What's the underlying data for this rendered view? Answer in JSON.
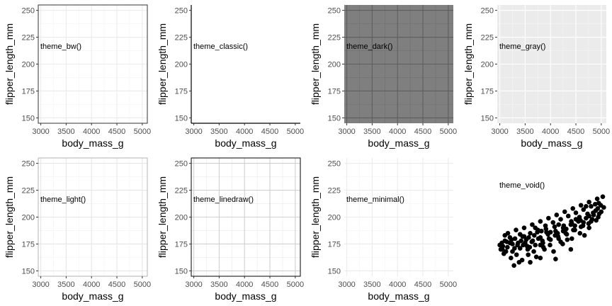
{
  "chart_data": [
    {
      "type": "scatter",
      "panel_label": "theme_bw()",
      "theme": "bw",
      "xlabel": "body_mass_g",
      "ylabel": "flipper_length_mm",
      "xlim": [
        2950,
        5100
      ],
      "ylim": [
        145,
        255
      ],
      "xticks": [
        3000,
        3500,
        4000,
        4500,
        5000
      ],
      "yticks": [
        150,
        175,
        200,
        225,
        250
      ],
      "points": []
    },
    {
      "type": "scatter",
      "panel_label": "theme_classic()",
      "theme": "classic",
      "xlabel": "body_mass_g",
      "ylabel": "flipper_length_mm",
      "xlim": [
        2950,
        5100
      ],
      "ylim": [
        145,
        255
      ],
      "xticks": [
        3000,
        3500,
        4000,
        4500,
        5000
      ],
      "yticks": [
        150,
        175,
        200,
        225,
        250
      ],
      "points": []
    },
    {
      "type": "scatter",
      "panel_label": "theme_dark()",
      "theme": "dark",
      "xlabel": "body_mass_g",
      "ylabel": "flipper_length_mm",
      "xlim": [
        2950,
        5100
      ],
      "ylim": [
        145,
        255
      ],
      "xticks": [
        3000,
        3500,
        4000,
        4500,
        5000
      ],
      "yticks": [
        150,
        175,
        200,
        225,
        250
      ],
      "points": []
    },
    {
      "type": "scatter",
      "panel_label": "theme_gray()",
      "theme": "gray",
      "xlabel": "body_mass_g",
      "ylabel": "flipper_length_mm",
      "xlim": [
        2950,
        5100
      ],
      "ylim": [
        145,
        255
      ],
      "xticks": [
        3000,
        3500,
        4000,
        4500,
        5000
      ],
      "yticks": [
        150,
        175,
        200,
        225,
        250
      ],
      "points": []
    },
    {
      "type": "scatter",
      "panel_label": "theme_light()",
      "theme": "light",
      "xlabel": "body_mass_g",
      "ylabel": "flipper_length_mm",
      "xlim": [
        2950,
        5100
      ],
      "ylim": [
        145,
        255
      ],
      "xticks": [
        3000,
        3500,
        4000,
        4500,
        5000
      ],
      "yticks": [
        150,
        175,
        200,
        225,
        250
      ],
      "points": []
    },
    {
      "type": "scatter",
      "panel_label": "theme_linedraw()",
      "theme": "linedraw",
      "xlabel": "body_mass_g",
      "ylabel": "flipper_length_mm",
      "xlim": [
        2950,
        5100
      ],
      "ylim": [
        145,
        255
      ],
      "xticks": [
        3000,
        3500,
        4000,
        4500,
        5000
      ],
      "yticks": [
        150,
        175,
        200,
        225,
        250
      ],
      "points": []
    },
    {
      "type": "scatter",
      "panel_label": "theme_minimal()",
      "theme": "minimal",
      "xlabel": "body_mass_g",
      "ylabel": "flipper_length_mm",
      "xlim": [
        2950,
        5100
      ],
      "ylim": [
        145,
        255
      ],
      "xticks": [
        3000,
        3500,
        4000,
        4500,
        5000
      ],
      "yticks": [
        150,
        175,
        200,
        225,
        250
      ],
      "points": []
    },
    {
      "type": "scatter",
      "panel_label": "theme_void()",
      "theme": "void",
      "xlabel": "",
      "ylabel": "",
      "xlim": [
        2950,
        5100
      ],
      "ylim": [
        145,
        255
      ],
      "xticks": [],
      "yticks": [],
      "points": [
        [
          3000,
          174
        ],
        [
          3050,
          170
        ],
        [
          3100,
          178
        ],
        [
          3150,
          172
        ],
        [
          3200,
          176
        ],
        [
          3250,
          168
        ],
        [
          3300,
          180
        ],
        [
          3350,
          174
        ],
        [
          3400,
          171
        ],
        [
          3450,
          182
        ],
        [
          3500,
          176
        ],
        [
          3550,
          170
        ],
        [
          3600,
          185
        ],
        [
          3650,
          178
        ],
        [
          3700,
          174
        ],
        [
          3750,
          188
        ],
        [
          3800,
          181
        ],
        [
          3850,
          176
        ],
        [
          3900,
          192
        ],
        [
          3950,
          184
        ],
        [
          4000,
          179
        ],
        [
          4050,
          195
        ],
        [
          4100,
          187
        ],
        [
          4150,
          182
        ],
        [
          4200,
          198
        ],
        [
          4250,
          190
        ],
        [
          4300,
          185
        ],
        [
          4350,
          201
        ],
        [
          4400,
          193
        ],
        [
          4450,
          188
        ],
        [
          4500,
          204
        ],
        [
          4550,
          196
        ],
        [
          4600,
          191
        ],
        [
          4650,
          207
        ],
        [
          4700,
          199
        ],
        [
          4750,
          194
        ],
        [
          4800,
          210
        ],
        [
          4850,
          202
        ],
        [
          4900,
          197
        ],
        [
          4950,
          213
        ],
        [
          5000,
          205
        ],
        [
          5050,
          209
        ],
        [
          3080,
          166
        ],
        [
          3220,
          162
        ],
        [
          3380,
          158
        ],
        [
          3560,
          165
        ],
        [
          3720,
          163
        ],
        [
          3880,
          170
        ],
        [
          4060,
          168
        ],
        [
          4240,
          175
        ],
        [
          4420,
          180
        ],
        [
          4580,
          185
        ],
        [
          4760,
          190
        ],
        [
          4940,
          200
        ],
        [
          3160,
          185
        ],
        [
          3320,
          188
        ],
        [
          3480,
          190
        ],
        [
          3640,
          193
        ],
        [
          3800,
          196
        ],
        [
          3960,
          199
        ],
        [
          4120,
          202
        ],
        [
          4280,
          205
        ],
        [
          4440,
          208
        ],
        [
          4600,
          211
        ],
        [
          4760,
          214
        ],
        [
          4920,
          217
        ],
        [
          5030,
          219
        ],
        [
          3020,
          170
        ],
        [
          3100,
          183
        ],
        [
          3250,
          175
        ],
        [
          3420,
          178
        ],
        [
          3590,
          172
        ],
        [
          3760,
          180
        ],
        [
          3920,
          186
        ],
        [
          4090,
          183
        ],
        [
          4260,
          192
        ],
        [
          4410,
          196
        ],
        [
          4570,
          200
        ],
        [
          4730,
          203
        ],
        [
          4890,
          206
        ],
        [
          3330,
          165
        ],
        [
          3670,
          168
        ],
        [
          3990,
          174
        ],
        [
          4330,
          179
        ],
        [
          4670,
          183
        ],
        [
          3140,
          177
        ],
        [
          3480,
          182
        ],
        [
          3820,
          187
        ],
        [
          4160,
          193
        ],
        [
          4500,
          198
        ],
        [
          4840,
          204
        ],
        [
          3060,
          173
        ],
        [
          3230,
          179
        ],
        [
          3400,
          184
        ],
        [
          3570,
          181
        ],
        [
          3740,
          186
        ],
        [
          3910,
          189
        ],
        [
          4080,
          191
        ],
        [
          4250,
          187
        ],
        [
          4420,
          194
        ],
        [
          4590,
          197
        ],
        [
          4760,
          201
        ],
        [
          4930,
          208
        ],
        [
          3120,
          168
        ],
        [
          3290,
          171
        ],
        [
          3460,
          174
        ],
        [
          3630,
          177
        ],
        [
          3800,
          174
        ],
        [
          3970,
          180
        ],
        [
          4140,
          185
        ],
        [
          4310,
          189
        ],
        [
          4480,
          192
        ],
        [
          4650,
          195
        ],
        [
          4820,
          198
        ],
        [
          4990,
          211
        ],
        [
          3040,
          176
        ],
        [
          3200,
          181
        ],
        [
          3360,
          176
        ],
        [
          3520,
          179
        ],
        [
          3680,
          183
        ],
        [
          3840,
          178
        ],
        [
          4000,
          186
        ],
        [
          4160,
          180
        ],
        [
          4320,
          184
        ],
        [
          4480,
          188
        ],
        [
          4640,
          192
        ],
        [
          4800,
          196
        ],
        [
          4960,
          203
        ],
        [
          3280,
          155
        ],
        [
          3440,
          160
        ],
        [
          3600,
          158
        ],
        [
          3800,
          162
        ],
        [
          4400,
          170
        ],
        [
          4100,
          161
        ],
        [
          3700,
          190
        ],
        [
          3540,
          173
        ],
        [
          3860,
          172
        ],
        [
          4200,
          177
        ],
        [
          4700,
          210
        ],
        [
          4880,
          212
        ]
      ]
    }
  ]
}
